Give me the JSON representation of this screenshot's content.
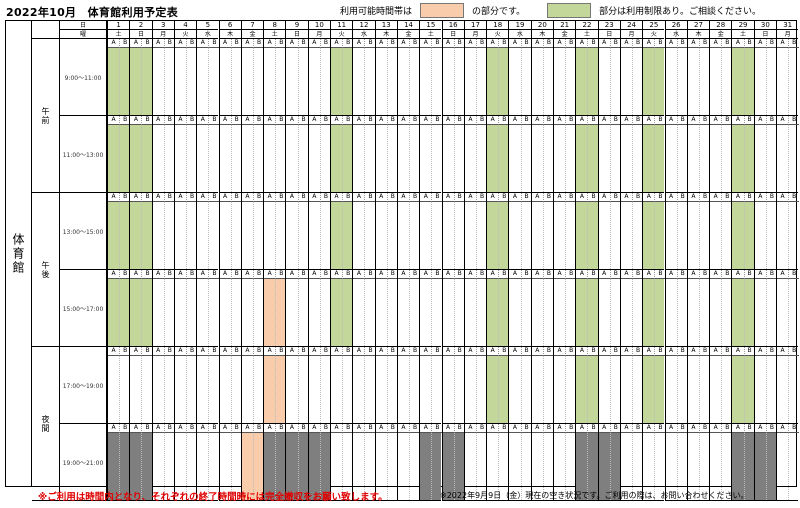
{
  "title": "2022年10月　体育館利用予定表",
  "legend": {
    "text1": "利用可能時間帯は",
    "text2": "の部分です。",
    "text3": "部分は利用制限あり。ご相談ください。",
    "available_color": "#f9ccac",
    "restricted_color": "#c4d79b",
    "booked_color": "#7f7f7f"
  },
  "header": {
    "day_label": "日",
    "weekday_label": "曜"
  },
  "facility": "体育館",
  "periods": [
    {
      "name": "午前",
      "slots": [
        "9:00〜11:00",
        "11:00〜13:00"
      ]
    },
    {
      "name": "午後",
      "slots": [
        "13:00〜15:00",
        "15:00〜17:00"
      ]
    },
    {
      "name": "夜間",
      "slots": [
        "17:00〜19:00",
        "19:00〜21:00"
      ]
    }
  ],
  "sub_labels": [
    "A",
    "B"
  ],
  "days": [
    {
      "day": "1",
      "wd": "土"
    },
    {
      "day": "2",
      "wd": "日"
    },
    {
      "day": "3",
      "wd": "月"
    },
    {
      "day": "4",
      "wd": "火"
    },
    {
      "day": "5",
      "wd": "水"
    },
    {
      "day": "6",
      "wd": "木"
    },
    {
      "day": "7",
      "wd": "金"
    },
    {
      "day": "8",
      "wd": "土"
    },
    {
      "day": "9",
      "wd": "日"
    },
    {
      "day": "10",
      "wd": "月"
    },
    {
      "day": "11",
      "wd": "火"
    },
    {
      "day": "12",
      "wd": "水"
    },
    {
      "day": "13",
      "wd": "木"
    },
    {
      "day": "14",
      "wd": "金"
    },
    {
      "day": "15",
      "wd": "土"
    },
    {
      "day": "16",
      "wd": "日"
    },
    {
      "day": "17",
      "wd": "月"
    },
    {
      "day": "18",
      "wd": "火"
    },
    {
      "day": "19",
      "wd": "水"
    },
    {
      "day": "20",
      "wd": "木"
    },
    {
      "day": "21",
      "wd": "金"
    },
    {
      "day": "22",
      "wd": "土"
    },
    {
      "day": "23",
      "wd": "日"
    },
    {
      "day": "24",
      "wd": "月"
    },
    {
      "day": "25",
      "wd": "火"
    },
    {
      "day": "26",
      "wd": "水"
    },
    {
      "day": "27",
      "wd": "木"
    },
    {
      "day": "28",
      "wd": "金"
    },
    {
      "day": "29",
      "wd": "土"
    },
    {
      "day": "30",
      "wd": "日"
    },
    {
      "day": "31",
      "wd": "月"
    }
  ],
  "cells": {
    "green": [
      [
        0,
        0
      ],
      [
        0,
        1
      ],
      [
        0,
        2
      ],
      [
        0,
        3
      ],
      [
        1,
        0
      ],
      [
        1,
        1
      ],
      [
        1,
        2
      ],
      [
        1,
        3
      ],
      [
        10,
        0
      ],
      [
        10,
        1
      ],
      [
        10,
        2
      ],
      [
        10,
        3
      ],
      [
        17,
        0
      ],
      [
        17,
        1
      ],
      [
        17,
        2
      ],
      [
        17,
        3
      ],
      [
        17,
        4
      ],
      [
        21,
        0
      ],
      [
        21,
        1
      ],
      [
        21,
        2
      ],
      [
        21,
        3
      ],
      [
        21,
        4
      ],
      [
        24,
        0
      ],
      [
        24,
        1
      ],
      [
        24,
        2
      ],
      [
        24,
        3
      ],
      [
        24,
        4
      ],
      [
        28,
        0
      ],
      [
        28,
        1
      ],
      [
        28,
        2
      ],
      [
        28,
        3
      ],
      [
        28,
        4
      ]
    ],
    "orange": [
      [
        7,
        3
      ],
      [
        7,
        4
      ],
      [
        6,
        5
      ]
    ],
    "gray": [
      [
        0,
        5
      ],
      [
        1,
        5
      ],
      [
        7,
        5
      ],
      [
        8,
        5
      ],
      [
        9,
        5
      ],
      [
        14,
        5
      ],
      [
        15,
        5
      ],
      [
        21,
        5
      ],
      [
        22,
        5
      ],
      [
        28,
        5
      ],
      [
        29,
        5
      ]
    ]
  },
  "notice": "※ご利用は時間内となり、それぞれの終了時間時には完全撤収をお願い致します。",
  "status_note": "※2022年9月9日（金）現在の空き状況です。ご利用の際は、お問い合わせください。"
}
